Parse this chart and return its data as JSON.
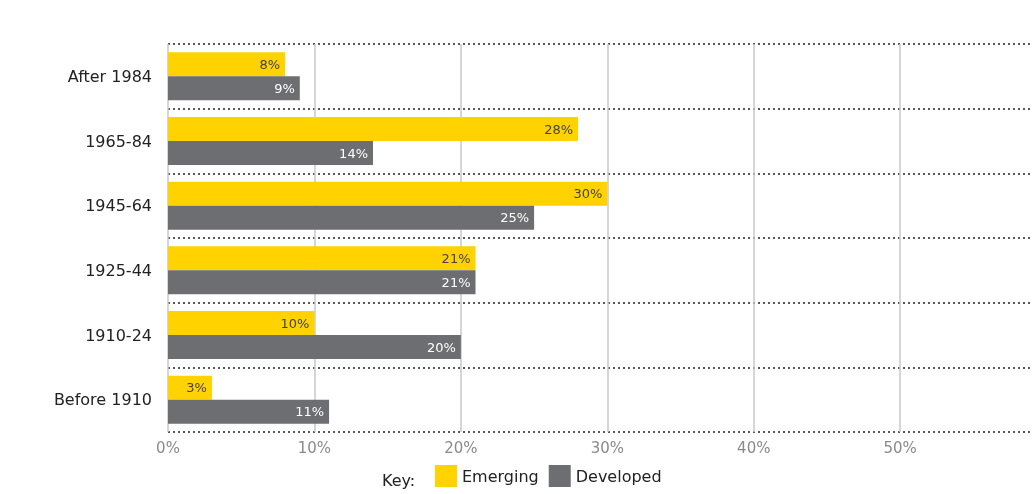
{
  "chart_data": {
    "type": "bar",
    "orientation": "horizontal",
    "categories": [
      "After 1984",
      "1965-84",
      "1945-64",
      "1925-44",
      "1910-24",
      "Before 1910"
    ],
    "series": [
      {
        "name": "Emerging",
        "color": "#ffd200",
        "values": [
          8,
          28,
          30,
          21,
          10,
          3
        ],
        "value_labels": [
          "8%",
          "28%",
          "30%",
          "21%",
          "10%",
          "3%"
        ]
      },
      {
        "name": "Developed",
        "color": "#6d6e71",
        "values": [
          9,
          14,
          25,
          21,
          20,
          11
        ],
        "value_labels": [
          "9%",
          "14%",
          "25%",
          "21%",
          "20%",
          "11%"
        ]
      }
    ],
    "xlim": [
      0,
      59
    ],
    "xticks": [
      {
        "value": 0,
        "label": "0%"
      },
      {
        "value": 10,
        "label": "10%"
      },
      {
        "value": 20,
        "label": "20%"
      },
      {
        "value": 30,
        "label": "30%"
      },
      {
        "value": 40,
        "label": "40%"
      },
      {
        "value": 50,
        "label": "50%"
      }
    ],
    "legend_title": "Key:",
    "legend": "bottom",
    "grid": true
  }
}
